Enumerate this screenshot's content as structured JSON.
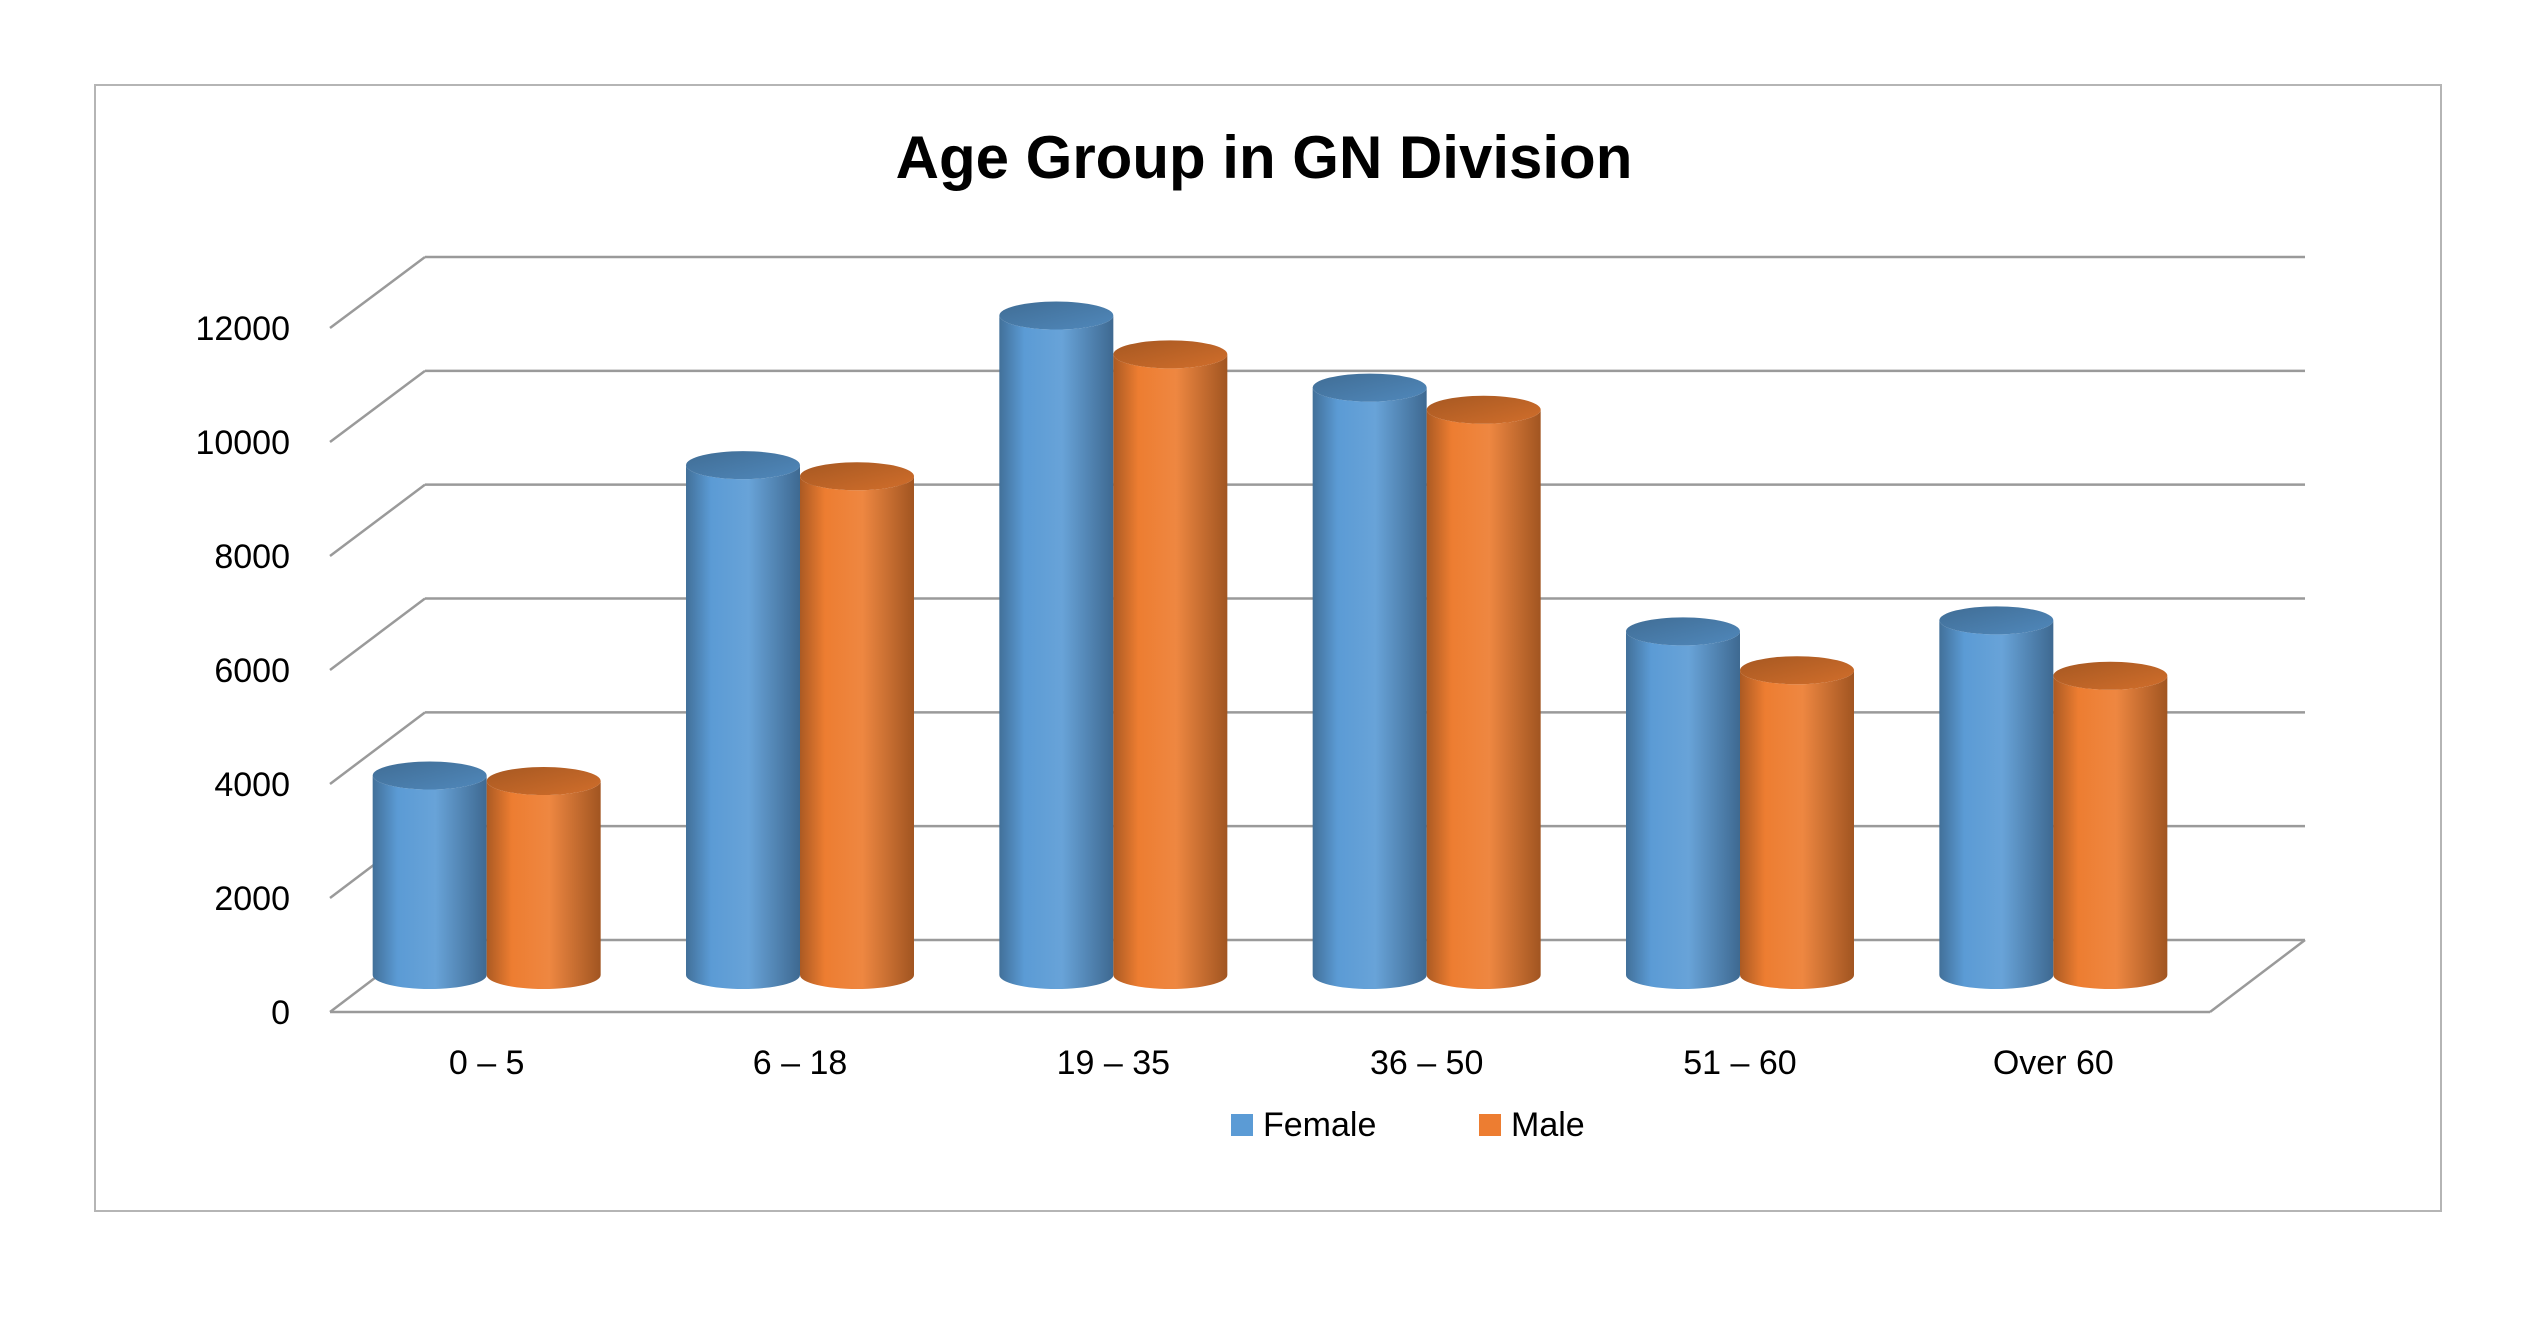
{
  "chart_data": {
    "type": "bar",
    "style": "3d-cylinder",
    "title": "Age Group in GN Division",
    "xlabel": "",
    "ylabel": "",
    "categories": [
      "0 – 5",
      "6 – 18",
      "19 – 35",
      "36 – 50",
      "51 – 60",
      "Over 60"
    ],
    "series": [
      {
        "name": "Female",
        "color": "#5b9bd5",
        "values": [
          3600,
          9200,
          11900,
          10600,
          6200,
          6400
        ]
      },
      {
        "name": "Male",
        "color": "#ed7d31",
        "values": [
          3500,
          9000,
          11200,
          10200,
          5500,
          5400
        ]
      }
    ],
    "ylim": [
      0,
      12000
    ],
    "yticks": [
      "0",
      "2000",
      "4000",
      "6000",
      "8000",
      "10000",
      "12000"
    ],
    "grid": true,
    "legend_position": "bottom"
  }
}
